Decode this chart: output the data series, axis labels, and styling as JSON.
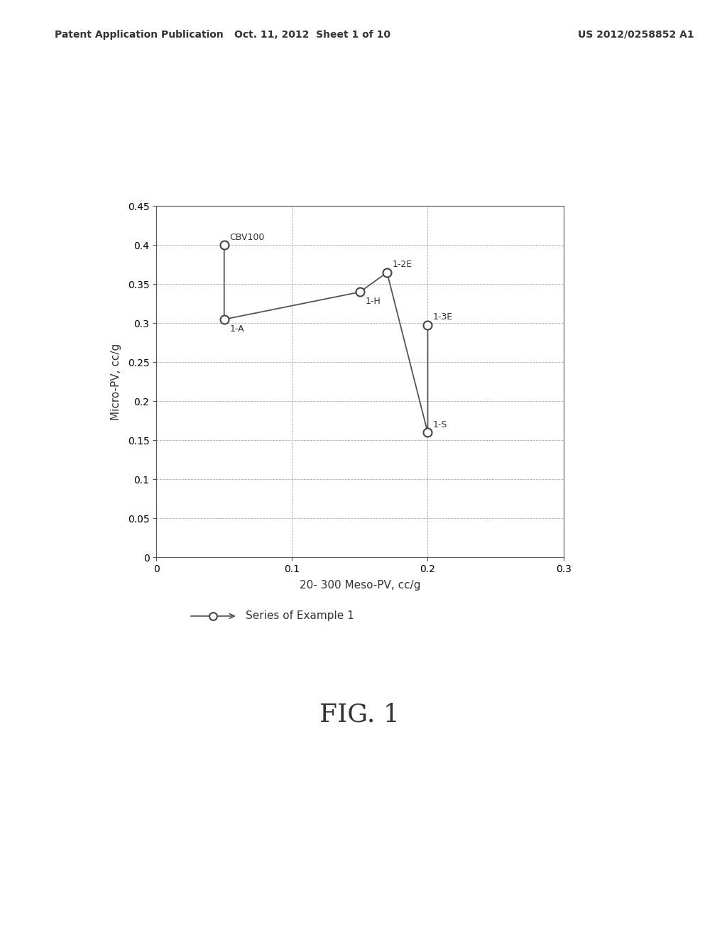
{
  "x_data": [
    0.05,
    0.05,
    0.15,
    0.17,
    0.2,
    0.2
  ],
  "y_data": [
    0.4,
    0.305,
    0.34,
    0.365,
    0.16,
    0.298
  ],
  "labels": [
    "CBV100",
    "1-A",
    "1-H",
    "1-2E",
    "1-S",
    "1-3E"
  ],
  "label_offsets_x": [
    0.004,
    0.004,
    0.004,
    0.004,
    0.004,
    0.004
  ],
  "label_offsets_y": [
    0.004,
    -0.018,
    -0.018,
    0.004,
    0.004,
    0.004
  ],
  "xlabel": "20- 300 Meso-PV, cc/g",
  "ylabel": "Micro-PV, cc/g",
  "xlim": [
    0,
    0.3
  ],
  "ylim": [
    0,
    0.45
  ],
  "xticks": [
    0,
    0.1,
    0.2,
    0.3
  ],
  "yticks": [
    0,
    0.05,
    0.1,
    0.15,
    0.2,
    0.25,
    0.3,
    0.35,
    0.4,
    0.45
  ],
  "legend_label": "Series of Example 1",
  "fig_label": "FIG. 1",
  "line_color": "#555555",
  "marker_facecolor": "#ffffff",
  "marker_edgecolor": "#444444",
  "grid_color": "#aaaaaa",
  "grid_linestyle": "--",
  "header_left": "Patent Application Publication",
  "header_mid": "Oct. 11, 2012  Sheet 1 of 10",
  "header_right": "US 2012/0258852 A1",
  "background_color": "#ffffff",
  "font_color": "#333333",
  "label_fontsize": 9,
  "tick_fontsize": 10,
  "axis_label_fontsize": 11
}
